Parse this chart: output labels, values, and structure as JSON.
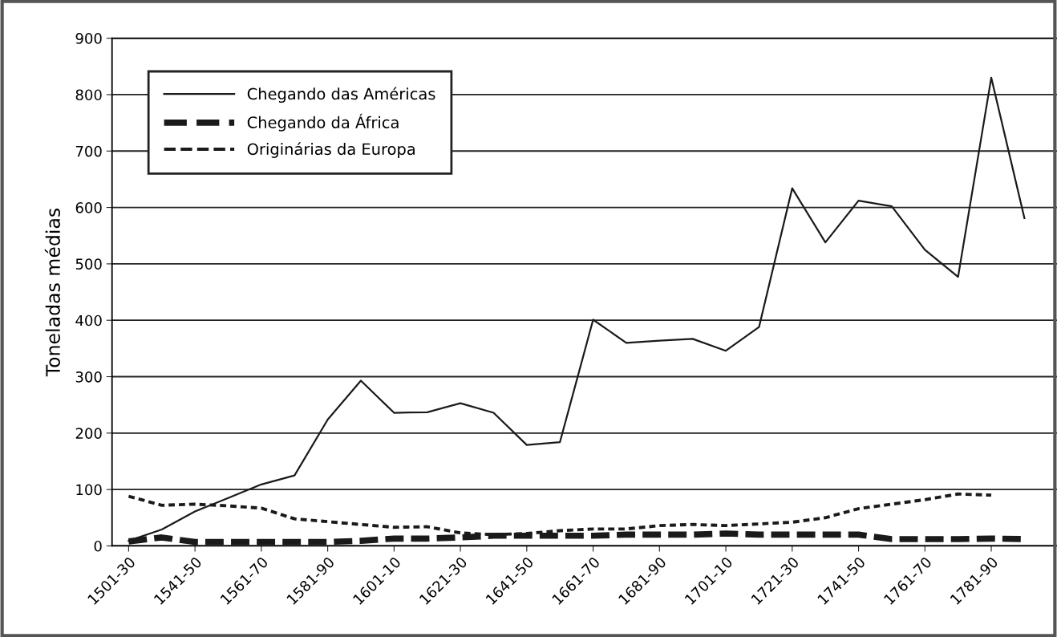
{
  "chart_data": {
    "type": "line",
    "ylabel": "Toneladas médias",
    "categories": [
      "1501-30",
      null,
      "1541-50",
      null,
      "1561-70",
      null,
      "1581-90",
      null,
      "1601-10",
      null,
      "1621-30",
      null,
      "1641-50",
      null,
      "1661-70",
      null,
      "1681-90",
      null,
      "1701-10",
      null,
      "1721-30",
      null,
      "1741-50",
      null,
      "1761-70",
      null,
      "1781-90",
      null
    ],
    "series": [
      {
        "name": "Chegando das Américas",
        "color": "#1a1a1a",
        "line_style": "solid",
        "values": [
          9,
          29,
          61,
          85,
          109,
          125,
          224,
          293,
          236,
          237,
          253,
          236,
          179,
          184,
          401,
          360,
          364,
          367,
          346,
          388,
          634,
          538,
          612,
          602,
          525,
          477,
          830,
          581
        ]
      },
      {
        "name": "Chegando da África",
        "color": "#1a1a1a",
        "line_style": "dashed",
        "values": [
          8,
          15,
          7,
          7,
          7,
          7,
          7,
          9,
          13,
          13,
          15,
          18,
          18,
          18,
          18,
          20,
          20,
          20,
          22,
          20,
          20,
          20,
          20,
          12,
          12,
          12,
          13,
          12
        ]
      },
      {
        "name": "Originárias da Europa",
        "color": "#1a1a1a",
        "line_style": "dotted",
        "values": [
          88,
          72,
          74,
          71,
          67,
          48,
          43,
          38,
          33,
          34,
          23,
          20,
          22,
          27,
          30,
          30,
          36,
          38,
          36,
          39,
          42,
          50,
          66,
          74,
          82,
          92,
          90,
          null
        ]
      }
    ],
    "ylim": [
      0,
      900
    ],
    "yticks": [
      0,
      100,
      200,
      300,
      400,
      500,
      600,
      700,
      800,
      900
    ],
    "grid": "y",
    "legend": "top left"
  }
}
